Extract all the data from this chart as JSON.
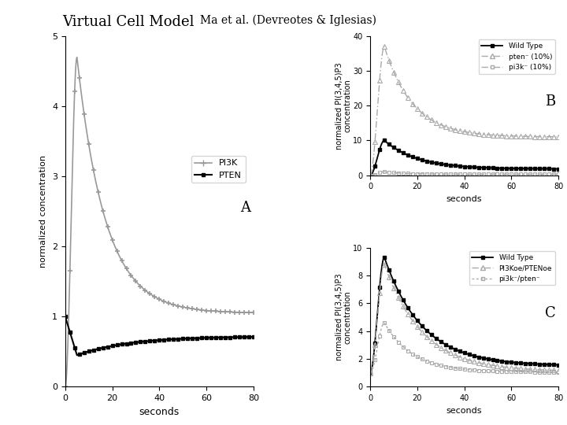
{
  "title_main": "Virtual Cell Model ",
  "title_citation": "Ma et al. (Devreotes & Iglesias)",
  "title_fontsize": 13,
  "bg_color": "#ffffff",
  "panelA": {
    "label": "A",
    "ylabel": "normalized concentration",
    "xlabel": "seconds",
    "xlim": [
      0,
      80
    ],
    "ylim": [
      0,
      5
    ],
    "yticks": [
      0,
      1,
      2,
      3,
      4,
      5
    ],
    "xticks": [
      0,
      20,
      40,
      60,
      80
    ],
    "legend": [
      "PI3K",
      "PTEN"
    ],
    "pi3k_peak_x": 5,
    "pi3k_peak_y": 4.7,
    "pi3k_steady": 1.05,
    "pten_min_x": 5,
    "pten_min_y": 0.45,
    "pten_steady": 0.72
  },
  "panelB": {
    "label": "B",
    "ylabel": "normalized PI(3,4,5)P3\nconcentration",
    "xlabel": "seconds",
    "xlim": [
      0,
      80
    ],
    "ylim": [
      0,
      40
    ],
    "yticks": [
      0,
      10,
      20,
      30,
      40
    ],
    "xticks": [
      0,
      20,
      40,
      60,
      80
    ],
    "legend": [
      "Wild Type",
      "pten⁻ (10%)",
      "pi3k⁻ (10%)"
    ],
    "wt_peak_x": 6,
    "wt_peak_y": 10,
    "wt_steady": 1.8,
    "pten_peak_x": 6,
    "pten_peak_y": 37,
    "pten_steady": 11.0,
    "pi3k_peak_y": 1.0,
    "pi3k_steady": 0.3
  },
  "panelC": {
    "label": "C",
    "ylabel": "normalized PI(3,4,5)P3\nconcentration",
    "xlabel": "seconds",
    "xlim": [
      0,
      80
    ],
    "ylim": [
      0,
      10
    ],
    "yticks": [
      0,
      2,
      4,
      6,
      8,
      10
    ],
    "xticks": [
      0,
      20,
      40,
      60,
      80
    ],
    "legend": [
      "Wild Type",
      "PI3Koe/PTENoe",
      "pi3k⁻/pten⁻"
    ],
    "wt_peak_x": 6,
    "wt_peak_y": 9.3,
    "wt_steady": 1.5,
    "oe_peak_y": 8.8,
    "oe_steady": 1.1,
    "dko_peak_y": 4.6,
    "dko_steady": 1.05
  }
}
